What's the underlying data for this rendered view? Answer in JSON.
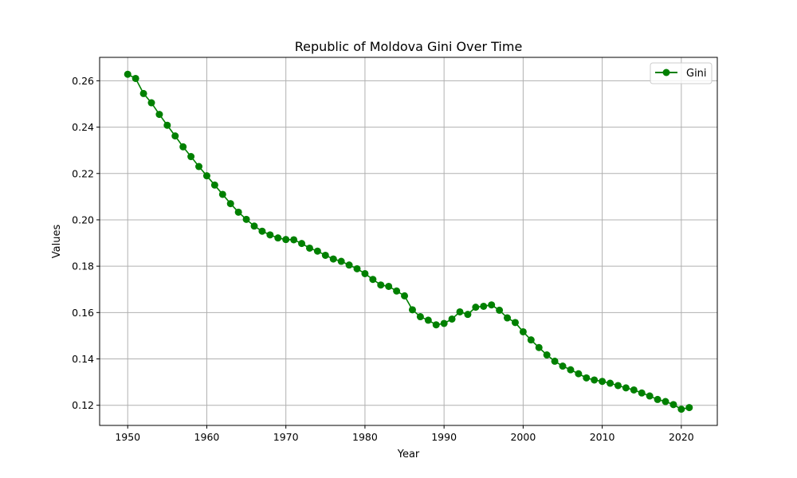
{
  "chart_data": {
    "type": "line",
    "title": "Republic of Moldova Gini Over Time",
    "xlabel": "Year",
    "ylabel": "Values",
    "xlim": [
      1946.45,
      2024.55
    ],
    "ylim": [
      0.1113,
      0.2701
    ],
    "xticks": [
      1950,
      1960,
      1970,
      1980,
      1990,
      2000,
      2010,
      2020
    ],
    "xtick_labels": [
      "1950",
      "1960",
      "1970",
      "1980",
      "1990",
      "2000",
      "2010",
      "2020"
    ],
    "yticks": [
      0.12,
      0.14,
      0.16,
      0.18,
      0.2,
      0.22,
      0.24,
      0.26
    ],
    "ytick_labels": [
      "0.12",
      "0.14",
      "0.16",
      "0.18",
      "0.20",
      "0.22",
      "0.24",
      "0.26"
    ],
    "grid": true,
    "legend_position": "top-right",
    "series": [
      {
        "name": "Gini",
        "color": "#008000",
        "marker": "circle",
        "x": [
          1950,
          1951,
          1952,
          1953,
          1954,
          1955,
          1956,
          1957,
          1958,
          1959,
          1960,
          1961,
          1962,
          1963,
          1964,
          1965,
          1966,
          1967,
          1968,
          1969,
          1970,
          1971,
          1972,
          1973,
          1974,
          1975,
          1976,
          1977,
          1978,
          1979,
          1980,
          1981,
          1982,
          1983,
          1984,
          1985,
          1986,
          1987,
          1988,
          1989,
          1990,
          1991,
          1992,
          1993,
          1994,
          1995,
          1996,
          1997,
          1998,
          1999,
          2000,
          2001,
          2002,
          2003,
          2004,
          2005,
          2006,
          2007,
          2008,
          2009,
          2010,
          2011,
          2012,
          2013,
          2014,
          2015,
          2016,
          2017,
          2018,
          2019,
          2020,
          2021
        ],
        "y": [
          0.2628,
          0.261,
          0.2545,
          0.2505,
          0.2455,
          0.2408,
          0.2362,
          0.2315,
          0.2273,
          0.223,
          0.219,
          0.215,
          0.211,
          0.207,
          0.2033,
          0.2002,
          0.1973,
          0.1951,
          0.1935,
          0.1922,
          0.1915,
          0.1914,
          0.1898,
          0.1878,
          0.1865,
          0.1847,
          0.1831,
          0.1821,
          0.1805,
          0.1789,
          0.1768,
          0.1743,
          0.1719,
          0.1713,
          0.1693,
          0.1672,
          0.1612,
          0.1582,
          0.1567,
          0.1547,
          0.1553,
          0.1572,
          0.1603,
          0.1592,
          0.1623,
          0.1627,
          0.1633,
          0.161,
          0.1577,
          0.1557,
          0.1517,
          0.1482,
          0.1449,
          0.1417,
          0.139,
          0.1369,
          0.1353,
          0.1336,
          0.1318,
          0.1309,
          0.1303,
          0.1295,
          0.1285,
          0.1275,
          0.1266,
          0.1253,
          0.124,
          0.1225,
          0.1216,
          0.1203,
          0.1183,
          0.119
        ]
      }
    ]
  }
}
